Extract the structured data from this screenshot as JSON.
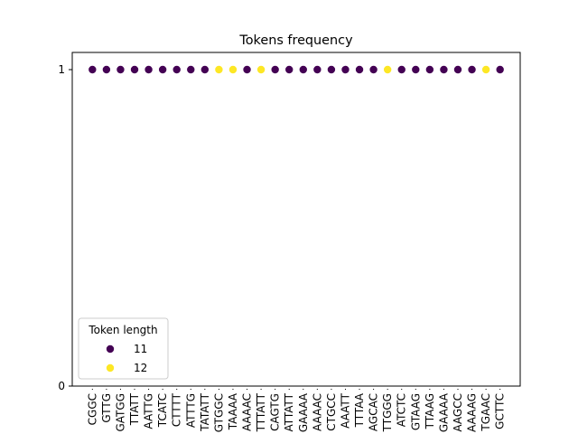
{
  "chart_data": {
    "type": "scatter",
    "title": "Tokens frequency",
    "xlabel": "",
    "ylabel": "",
    "ylim": [
      0,
      1
    ],
    "yticks": [
      0,
      1
    ],
    "grid": false,
    "categories": [
      "CGGC",
      "GTTG",
      "GATGG",
      "TTATT",
      "AATTG",
      "TCATC",
      "CTTTT",
      "ATTTG",
      "TATATT",
      "GTGGC",
      "TAAAA",
      "AAAAC",
      "TTTATT",
      "CAGTG",
      "ATTATT",
      "GAAAA",
      "AAAAC",
      "CTGCC",
      "AAATT",
      "TTTAA",
      "AGCAC",
      "TTGGG",
      "ATCTC",
      "GTAAG",
      "TTAAG",
      "GAAAA",
      "AAGCC",
      "AAAAG",
      "TGAAC",
      "GCTTC"
    ],
    "values": [
      1,
      1,
      1,
      1,
      1,
      1,
      1,
      1,
      1,
      1,
      1,
      1,
      1,
      1,
      1,
      1,
      1,
      1,
      1,
      1,
      1,
      1,
      1,
      1,
      1,
      1,
      1,
      1,
      1,
      1
    ],
    "token_length": [
      11,
      11,
      11,
      11,
      11,
      11,
      11,
      11,
      11,
      12,
      12,
      11,
      12,
      11,
      11,
      11,
      11,
      11,
      11,
      11,
      11,
      12,
      11,
      11,
      11,
      11,
      11,
      11,
      12,
      11
    ],
    "legend": {
      "title": "Token length",
      "placement": "lower-left",
      "entries": [
        {
          "label": "11",
          "color": "#440154"
        },
        {
          "label": "12",
          "color": "#fde725"
        }
      ]
    }
  }
}
